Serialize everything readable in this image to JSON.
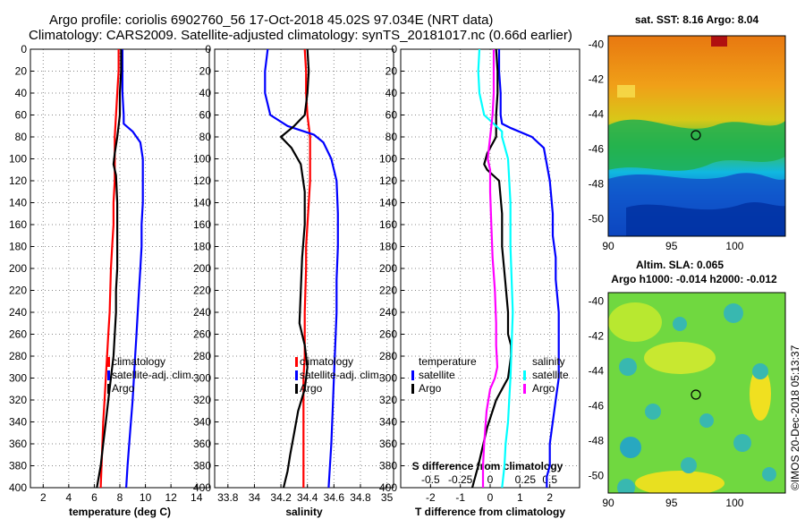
{
  "header": {
    "title_line1": "Argo profile: coriolis 6902760_56 17-Oct-2018 45.02S 97.034E (NRT data)",
    "title_line2": "Climatology: CARS2009. Satellite-adjusted climatology: synTS_20181017.nc (0.66d earlier)"
  },
  "watermark": "©IMOS 20-Dec-2018 05:13:37",
  "colors": {
    "climatology": "#ff0000",
    "satellite": "#0000ff",
    "argo": "#000000",
    "s_satellite": "#00ffff",
    "s_argo": "#ff00ff"
  },
  "chart_data": [
    {
      "type": "line",
      "title": "",
      "xlabel": "temperature (deg C)",
      "ylabel": "depth",
      "xlim": [
        1,
        15
      ],
      "ylim": [
        400,
        0
      ],
      "xticks": [
        2,
        4,
        6,
        8,
        10,
        12,
        14
      ],
      "yticks": [
        0,
        20,
        40,
        60,
        80,
        100,
        120,
        140,
        160,
        180,
        200,
        220,
        240,
        260,
        280,
        300,
        320,
        340,
        360,
        380,
        400
      ],
      "legend": [
        "climatology",
        "satellite-adj. clim.",
        "Argo"
      ],
      "series": [
        {
          "name": "climatology",
          "color": "#ff0000",
          "x": [
            7.9,
            7.9,
            7.8,
            7.7,
            7.6,
            7.6,
            7.6,
            7.5,
            7.5,
            7.4,
            7.3,
            7.2,
            7.1,
            7.0,
            6.9,
            6.8,
            6.7,
            6.6,
            6.5
          ],
          "y": [
            0,
            20,
            40,
            60,
            80,
            100,
            120,
            140,
            160,
            180,
            200,
            240,
            260,
            280,
            300,
            320,
            340,
            370,
            400
          ]
        },
        {
          "name": "satellite-adj. clim.",
          "color": "#0000ff",
          "x": [
            8.2,
            8.2,
            8.2,
            8.3,
            8.3,
            9.0,
            9.6,
            9.8,
            9.8,
            9.8,
            9.7,
            9.7,
            9.6,
            9.5,
            9.4,
            9.3,
            9.2,
            9.1,
            9.0,
            8.8,
            8.6,
            8.5
          ],
          "y": [
            0,
            20,
            40,
            60,
            68,
            75,
            85,
            100,
            120,
            140,
            160,
            180,
            200,
            220,
            240,
            260,
            280,
            300,
            320,
            350,
            380,
            400
          ]
        },
        {
          "name": "Argo",
          "color": "#000000",
          "x": [
            8.1,
            8.1,
            8.0,
            8.0,
            7.9,
            7.8,
            7.6,
            7.5,
            7.7,
            7.8,
            7.8,
            7.8,
            7.8,
            7.7,
            7.7,
            7.6,
            7.5,
            7.3,
            7.1,
            6.9,
            6.7,
            6.5,
            6.2
          ],
          "y": [
            0,
            20,
            40,
            60,
            70,
            80,
            95,
            105,
            115,
            140,
            160,
            180,
            200,
            220,
            240,
            260,
            280,
            300,
            320,
            340,
            360,
            380,
            400
          ]
        }
      ]
    },
    {
      "type": "line",
      "title": "",
      "xlabel": "salinity",
      "ylabel": "depth",
      "xlim": [
        33.7,
        35.05
      ],
      "ylim": [
        400,
        0
      ],
      "xticks": [
        33.8,
        34,
        34.2,
        34.4,
        34.6,
        34.8,
        35
      ],
      "yticks": [
        0,
        20,
        40,
        60,
        80,
        100,
        120,
        140,
        160,
        180,
        200,
        220,
        240,
        260,
        280,
        300,
        320,
        340,
        360,
        380,
        400
      ],
      "legend": [
        "climatology",
        "satellite-adj. clim.",
        "Argo"
      ],
      "series": [
        {
          "name": "climatology",
          "color": "#ff0000",
          "x": [
            34.38,
            34.39,
            34.39,
            34.4,
            34.42,
            34.42,
            34.42,
            34.41,
            34.4,
            34.39,
            34.39,
            34.38,
            34.38,
            34.37,
            34.37,
            34.37,
            34.37
          ],
          "y": [
            0,
            20,
            40,
            60,
            80,
            100,
            120,
            140,
            160,
            180,
            200,
            240,
            280,
            300,
            340,
            370,
            400
          ]
        },
        {
          "name": "satellite-adj. clim.",
          "color": "#0000ff",
          "x": [
            34.1,
            34.08,
            34.08,
            34.12,
            34.25,
            34.45,
            34.52,
            34.58,
            34.62,
            34.63,
            34.63,
            34.62,
            34.62,
            34.61,
            34.6,
            34.59,
            34.58,
            34.57,
            34.56
          ],
          "y": [
            0,
            20,
            40,
            60,
            70,
            78,
            85,
            100,
            120,
            150,
            180,
            210,
            240,
            270,
            300,
            330,
            360,
            380,
            400
          ]
        },
        {
          "name": "Argo",
          "color": "#000000",
          "x": [
            34.4,
            34.41,
            34.4,
            34.38,
            34.3,
            34.2,
            34.28,
            34.35,
            34.38,
            34.38,
            34.36,
            34.35,
            34.34,
            34.38,
            34.4,
            34.38,
            34.33,
            34.3,
            34.27,
            34.25,
            34.22
          ],
          "y": [
            0,
            20,
            40,
            60,
            70,
            80,
            90,
            105,
            130,
            160,
            190,
            220,
            250,
            270,
            290,
            310,
            330,
            350,
            370,
            385,
            400
          ]
        }
      ]
    },
    {
      "type": "line",
      "title": "",
      "xlabel": "T difference from climatology",
      "xlabel2": "S difference from climatology",
      "ylabel": "depth",
      "xlim": [
        -3,
        3
      ],
      "ylim": [
        400,
        0
      ],
      "xticks": [
        -2,
        -1,
        0,
        1,
        2
      ],
      "xticks2_labels": [
        "-0.5",
        "-0.25",
        "0",
        "0.25",
        "0.5"
      ],
      "yticks": [
        0,
        20,
        40,
        60,
        80,
        100,
        120,
        140,
        160,
        180,
        200,
        220,
        240,
        260,
        280,
        300,
        320,
        340,
        360,
        380,
        400
      ],
      "legend_left": [
        "temperature",
        "satellite",
        "Argo"
      ],
      "legend_right": [
        "salinity",
        "satellite",
        "Argo"
      ],
      "series": [
        {
          "name": "T satellite",
          "color": "#0000ff",
          "x": [
            0.3,
            0.3,
            0.35,
            0.35,
            0.4,
            0.7,
            1.4,
            1.8,
            2.0,
            2.1,
            2.1,
            2.2,
            2.2,
            2.3,
            2.3,
            2.3,
            2.2,
            2.1,
            2.0,
            2.0,
            1.9,
            1.9
          ],
          "y": [
            0,
            20,
            40,
            60,
            68,
            72,
            80,
            90,
            120,
            150,
            170,
            190,
            210,
            240,
            270,
            300,
            320,
            340,
            360,
            380,
            390,
            400
          ]
        },
        {
          "name": "T Argo",
          "color": "#000000",
          "x": [
            0.2,
            0.25,
            0.25,
            0.2,
            0.2,
            -0.1,
            -0.2,
            -0.1,
            0.3,
            0.4,
            0.4,
            0.5,
            0.6,
            0.6,
            0.7,
            0.7,
            0.6,
            0.4,
            0.2,
            -0.1,
            -0.4,
            -0.6
          ],
          "y": [
            0,
            20,
            40,
            60,
            80,
            95,
            105,
            110,
            120,
            150,
            180,
            210,
            240,
            260,
            270,
            280,
            300,
            310,
            320,
            345,
            380,
            400
          ]
        },
        {
          "name": "S satellite",
          "color": "#00ffff",
          "x": [
            -0.09,
            -0.1,
            -0.09,
            -0.05,
            0.05,
            0.1,
            0.1,
            0.15,
            0.17,
            0.17,
            0.18,
            0.19,
            0.18,
            0.17,
            0.16,
            0.15,
            0.13,
            0.12,
            0.1
          ],
          "y": [
            0,
            20,
            40,
            60,
            70,
            75,
            80,
            100,
            140,
            180,
            210,
            240,
            270,
            300,
            320,
            340,
            360,
            380,
            400
          ]
        },
        {
          "name": "S Argo",
          "color": "#ff00ff",
          "x": [
            0.03,
            0.03,
            0.03,
            0.02,
            0.0,
            -0.02,
            0.0,
            0.0,
            0.01,
            0.02,
            0.04,
            0.05,
            0.05,
            0.06,
            0.04,
            0.0,
            -0.03,
            -0.05,
            -0.06,
            -0.06
          ],
          "y": [
            0,
            20,
            40,
            60,
            80,
            100,
            110,
            130,
            160,
            190,
            220,
            250,
            270,
            290,
            300,
            310,
            330,
            360,
            380,
            400
          ]
        }
      ]
    },
    {
      "type": "heatmap",
      "title": "sat. SST: 8.16 Argo: 8.04",
      "xticks": [
        90,
        95,
        100
      ],
      "yticks": [
        -40,
        -42,
        -44,
        -46,
        -48,
        -50
      ],
      "xlim": [
        90,
        104
      ],
      "ylim": [
        -51,
        -39.5
      ],
      "marker": {
        "lon": 97.03,
        "lat": -45.02
      }
    },
    {
      "type": "heatmap",
      "title": "Altim. SLA: 0.065",
      "subtitle": "Argo h1000: -0.014 h2000: -0.012",
      "xticks": [
        90,
        95,
        100
      ],
      "yticks": [
        -40,
        -42,
        -44,
        -46,
        -48,
        -50
      ],
      "xlim": [
        90,
        104
      ],
      "ylim": [
        -51,
        -39.5
      ],
      "marker": {
        "lon": 97.03,
        "lat": -45.02
      }
    }
  ]
}
